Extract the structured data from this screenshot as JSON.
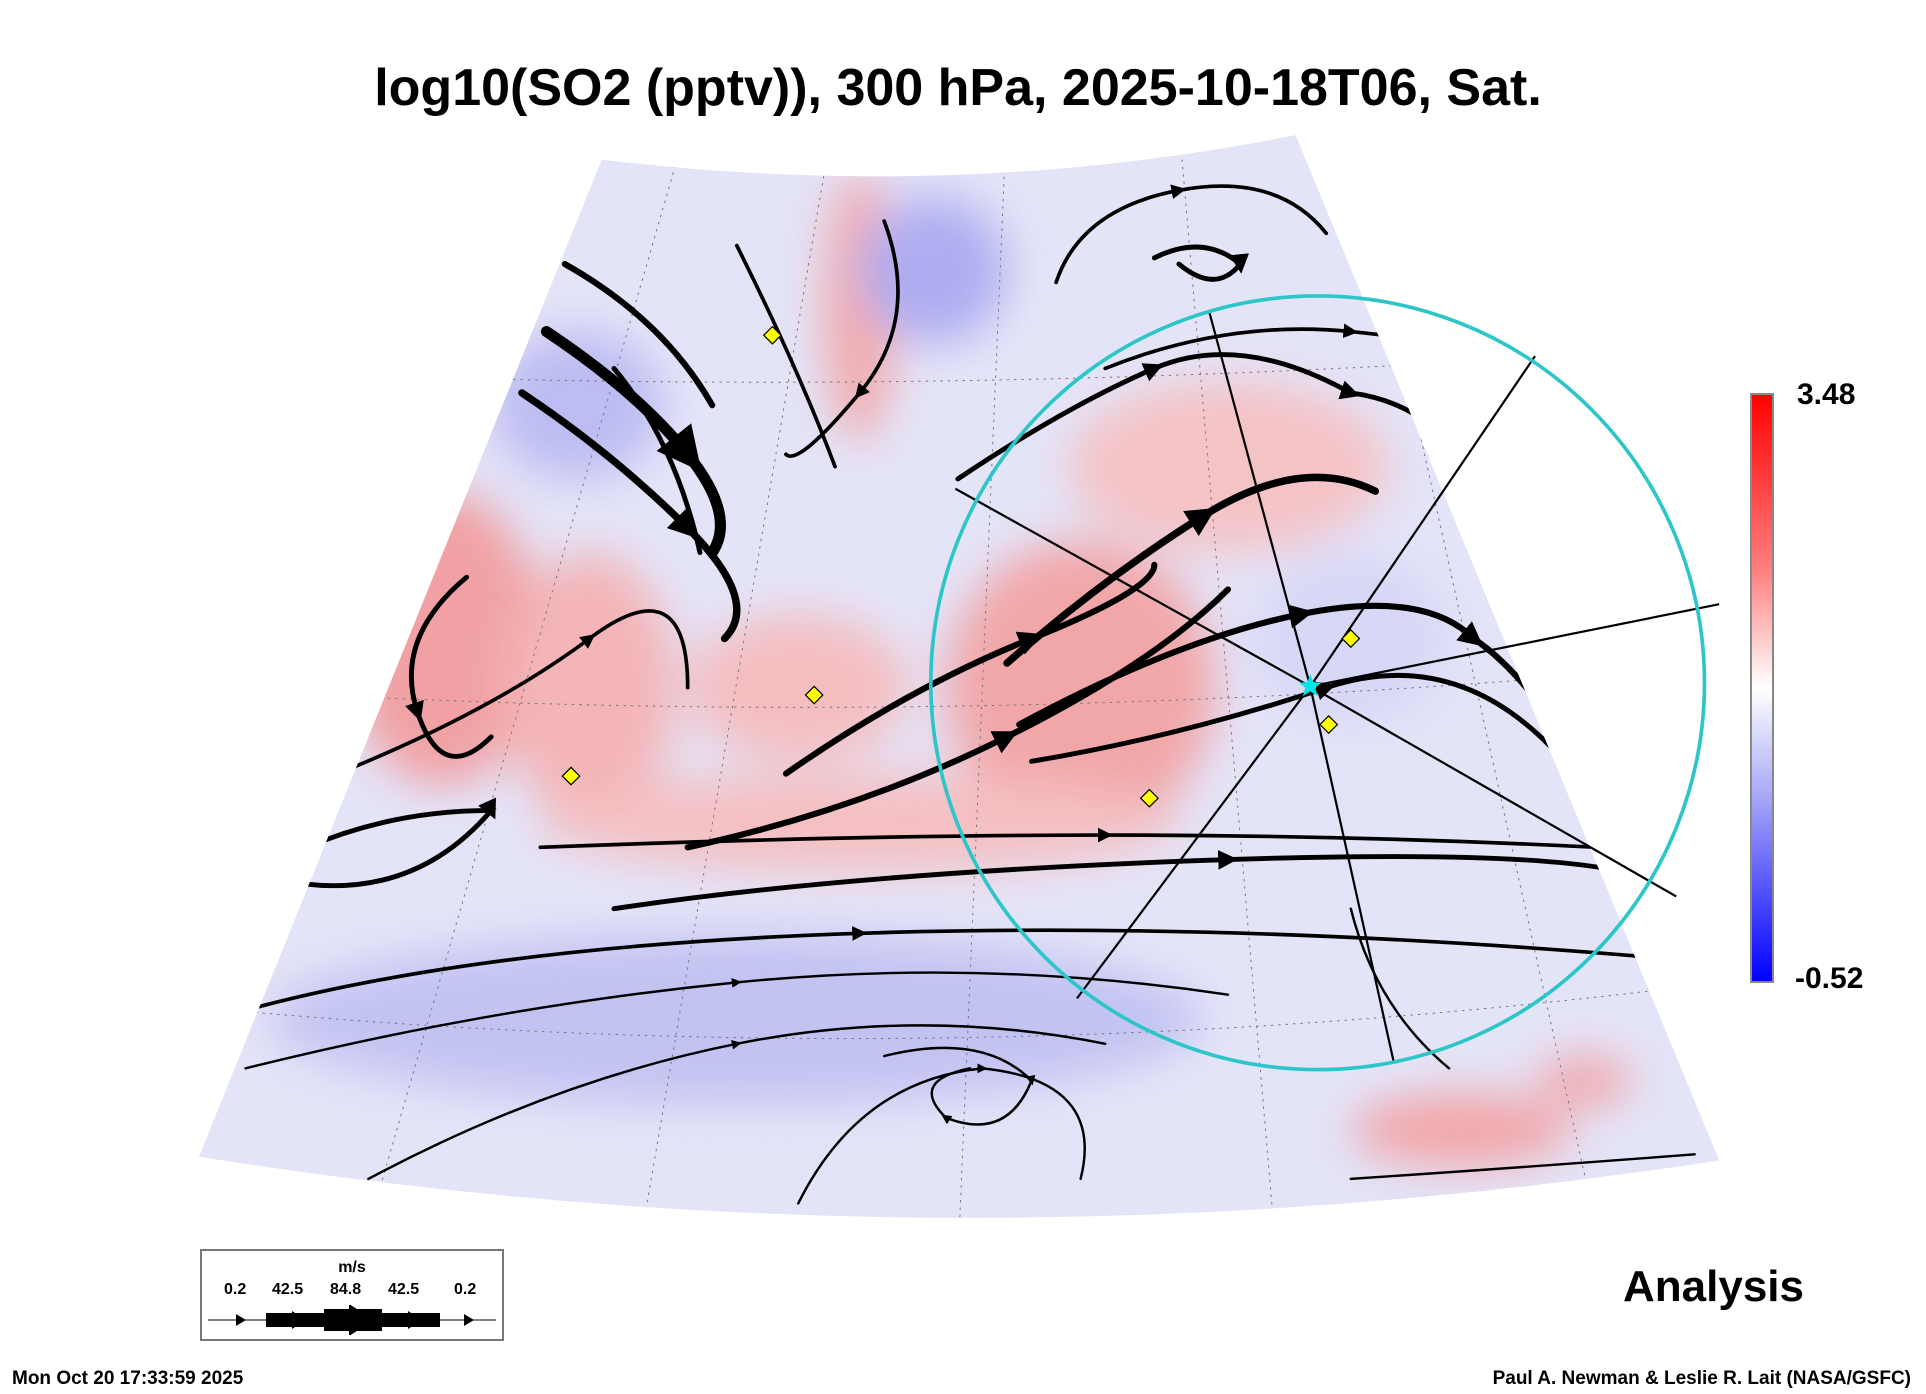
{
  "title": "log10(SO2 (pptv)), 300 hPa, 2025-10-18T06, Sat.",
  "colorbar": {
    "max_label": "3.48",
    "min_label": "-0.52",
    "max_color": "#ff0000",
    "mid_color": "#ffffff",
    "min_color": "#0000ff"
  },
  "wind_legend": {
    "unit": "m/s",
    "values": [
      "0.2",
      "42.5",
      "84.8",
      "42.5",
      "0.2"
    ]
  },
  "label_analysis": "Analysis",
  "footer": {
    "timestamp": "Mon Oct 20 17:33:59 2025",
    "credit": "Paul A. Newman & Leslie R. Lait (NASA/GSFC)"
  },
  "overlay": {
    "circle_color": "#2cc6c8",
    "marker_color": "#ffff00",
    "star_color": "#00e5e5"
  }
}
